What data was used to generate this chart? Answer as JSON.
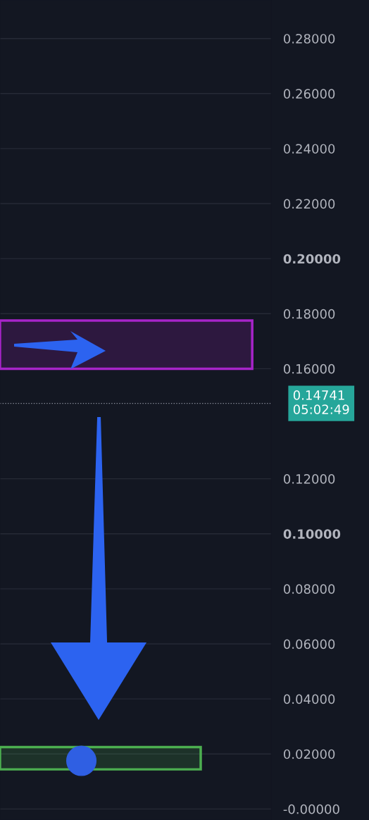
{
  "chart_data": {
    "type": "scatter",
    "categories": [
      null,
      null,
      null,
      null,
      null
    ],
    "series": [
      {
        "color": "#2f5fe3",
        "values": [
          null,
          0.0175,
          null,
          null,
          null
        ]
      }
    ],
    "marker": "circle",
    "ylim": [
      -0.004,
      0.294
    ],
    "yticks": [
      {
        "value": 0,
        "label": "-0.00000"
      },
      {
        "value": 0.02,
        "label": "0.02000"
      },
      {
        "value": 0.04,
        "label": "0.04000"
      },
      {
        "value": 0.06,
        "label": "0.06000"
      },
      {
        "value": 0.08,
        "label": "0.08000"
      },
      {
        "value": 0.1,
        "label": "0.10000"
      },
      {
        "value": 0.12,
        "label": "0.12000"
      },
      {
        "value": 0.16,
        "label": "0.16000"
      },
      {
        "value": 0.18,
        "label": "0.18000"
      },
      {
        "value": 0.2,
        "label": "0.20000"
      },
      {
        "value": 0.22,
        "label": "0.22000"
      },
      {
        "value": 0.24,
        "label": "0.24000"
      },
      {
        "value": 0.26,
        "label": "0.26000"
      },
      {
        "value": 0.28,
        "label": "0.28000"
      }
    ],
    "tick_labels": "y",
    "grid": "y",
    "bands": [
      {
        "axis": "y",
        "from": 0.16,
        "to": 0.1775,
        "color": "#a724c9"
      },
      {
        "axis": "y",
        "from": 0.0144,
        "to": 0.0225,
        "color": "#4caf50"
      }
    ],
    "ref_lines": [
      {
        "axis": "y",
        "value": 0.14741,
        "label": "0.14741\n05:02:49",
        "color": "#8a8f9c",
        "line_style": "dotted"
      }
    ]
  }
}
